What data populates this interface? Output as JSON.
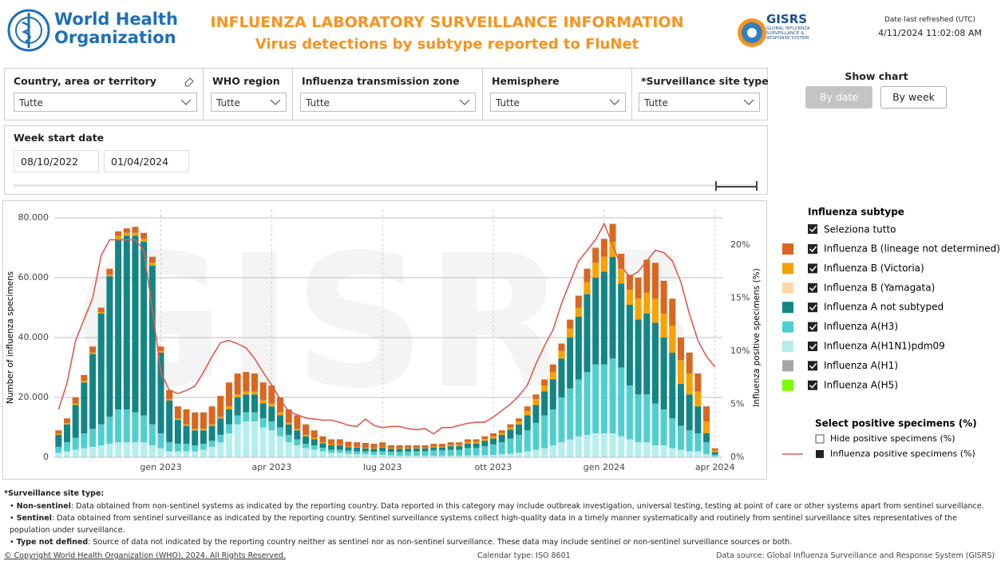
{
  "header": {
    "org_line1": "World Health",
    "org_line2": "Organization",
    "title": "INFLUENZA LABORATORY SURVEILLANCE INFORMATION",
    "subtitle": "Virus detections by subtype reported to FluNet",
    "gisrs": "GISRS",
    "gisrs_sub": "GLOBAL INFLUENZA SURVEILLANCE & RESPONSE SYSTEM",
    "refreshed_label": "Date last refreshed (UTC)",
    "refreshed_value": "4/11/2024 11:02:08 AM"
  },
  "filters": [
    {
      "label": "Country, area or territory",
      "value": "Tutte"
    },
    {
      "label": "WHO region",
      "value": "Tutte"
    },
    {
      "label": "Influenza transmission zone",
      "value": "Tutte"
    },
    {
      "label": "Hemisphere",
      "value": "Tutte"
    },
    {
      "label": "*Surveillance site type",
      "value": "Tutte"
    }
  ],
  "date_filter": {
    "label": "Week start date",
    "from": "08/10/2022",
    "to": "01/04/2024"
  },
  "show_chart": {
    "title": "Show chart",
    "options": [
      "By date",
      "By week"
    ]
  },
  "chart_data": {
    "type": "bar",
    "stacked": true,
    "watermark": "GISRS",
    "y_label": "Number of influenza specimens",
    "y2_label": "Influenza positive specimens (%)",
    "categories": [
      null,
      null,
      null,
      null,
      null,
      null,
      null,
      null,
      null,
      null,
      null,
      null,
      "gen 2023",
      null,
      null,
      null,
      null,
      null,
      null,
      null,
      null,
      null,
      null,
      null,
      null,
      "apr 2023",
      null,
      null,
      null,
      null,
      null,
      null,
      null,
      null,
      null,
      null,
      null,
      null,
      "lug 2023",
      null,
      null,
      null,
      null,
      null,
      null,
      null,
      null,
      null,
      null,
      null,
      null,
      "ott 2023",
      null,
      null,
      null,
      null,
      null,
      null,
      null,
      null,
      null,
      null,
      null,
      null,
      "gen 2024",
      null,
      null,
      null,
      null,
      null,
      null,
      null,
      null,
      null,
      null,
      null,
      null,
      "apr 2024"
    ],
    "ylim": [
      0,
      80000
    ],
    "yticks": [
      0,
      {
        "value": 20000,
        "label": "20.000"
      },
      {
        "value": 40000,
        "label": "40.000"
      },
      {
        "value": 60000,
        "label": "60.000"
      },
      {
        "value": 80000,
        "label": "80.000"
      }
    ],
    "y2lim": [
      0,
      22.56
    ],
    "y2ticks": [
      {
        "value": 0,
        "label": "0%"
      },
      {
        "value": 5,
        "label": "5%"
      },
      {
        "value": 10,
        "label": "10%"
      },
      {
        "value": 15,
        "label": "15%"
      },
      {
        "value": 20,
        "label": "20%"
      }
    ],
    "grid": true,
    "legend_title": "Influenza subtype",
    "select_all": "Seleziona tutto",
    "line_legend_title": "Select positive specimens (%)",
    "hide_label": "Hide positive specimens (%)",
    "series": [
      {
        "name": "Influenza B (lineage not determined)",
        "color": "#d9671f",
        "values": [
          1200,
          1500,
          2000,
          2000,
          2000,
          1500,
          2000,
          1500,
          1500,
          2000,
          2000,
          2000,
          1500,
          3000,
          4000,
          5000,
          5500,
          5500,
          6000,
          7000,
          8000,
          7000,
          6500,
          6000,
          6000,
          6000,
          5000,
          4500,
          4500,
          3500,
          2500,
          2000,
          1700,
          1800,
          1600,
          1600,
          1600,
          1500,
          1600,
          1000,
          1000,
          900,
          800,
          800,
          900,
          900,
          900,
          900,
          900,
          900,
          900,
          1000,
          900,
          1000,
          1000,
          1500,
          1500,
          2000,
          2500,
          2500,
          3000,
          4000,
          4500,
          5000,
          6000,
          6000,
          5000,
          5000,
          7000,
          11000,
          12000,
          11000,
          9000,
          7500,
          7000,
          6000,
          5000,
          700
        ]
      },
      {
        "name": "Influenza B (Victoria)",
        "color": "#f5a300",
        "values": [
          300,
          500,
          500,
          500,
          500,
          500,
          500,
          1000,
          1000,
          1000,
          1000,
          1000,
          500,
          500,
          500,
          500,
          500,
          500,
          500,
          500,
          1000,
          1000,
          1000,
          1000,
          1000,
          1000,
          1000,
          500,
          500,
          500,
          500,
          300,
          300,
          200,
          200,
          200,
          200,
          200,
          200,
          200,
          200,
          200,
          200,
          200,
          300,
          300,
          400,
          400,
          500,
          500,
          600,
          700,
          600,
          800,
          1000,
          1500,
          2000,
          2000,
          2500,
          2500,
          3000,
          3000,
          4000,
          5000,
          5000,
          5000,
          5000,
          5000,
          7000,
          7000,
          8000,
          8000,
          9000,
          8000,
          7000,
          5000,
          4000,
          600
        ]
      },
      {
        "name": "Influenza B (Yamagata)",
        "color": "#fdd9a8",
        "values": [
          0,
          0,
          0,
          0,
          0,
          0,
          0,
          0,
          0,
          0,
          0,
          0,
          0,
          0,
          0,
          0,
          0,
          0,
          0,
          0,
          0,
          0,
          0,
          0,
          0,
          0,
          0,
          0,
          0,
          0,
          0,
          0,
          0,
          0,
          0,
          0,
          0,
          0,
          0,
          0,
          0,
          0,
          0,
          0,
          0,
          0,
          0,
          0,
          0,
          0,
          0,
          0,
          0,
          0,
          0,
          0,
          0,
          0,
          0,
          0,
          0,
          0,
          0,
          0,
          0,
          0,
          0,
          0,
          0,
          0,
          0,
          0,
          0,
          0,
          0,
          0,
          0,
          0
        ]
      },
      {
        "name": "Influenza A not subtyped",
        "color": "#138585",
        "values": [
          4000,
          6000,
          11000,
          17000,
          25000,
          37000,
          47000,
          57000,
          58000,
          59000,
          58000,
          53000,
          27000,
          14000,
          8000,
          6000,
          5000,
          4500,
          5000,
          5500,
          5000,
          6000,
          6000,
          6000,
          5000,
          5000,
          4000,
          3500,
          3000,
          2500,
          2000,
          1500,
          1500,
          1500,
          1200,
          1200,
          1000,
          1000,
          1200,
          1000,
          1000,
          1000,
          1000,
          1000,
          1000,
          1000,
          1200,
          1200,
          1500,
          1500,
          1800,
          2000,
          2500,
          3000,
          3500,
          5000,
          6000,
          8000,
          10000,
          13000,
          17000,
          21000,
          26000,
          29000,
          31000,
          34000,
          28000,
          27000,
          25000,
          27000,
          27000,
          24000,
          22000,
          14000,
          12000,
          9000,
          3000,
          800
        ]
      },
      {
        "name": "Influenza A(H3)",
        "color": "#4ecfcf",
        "values": [
          2000,
          3000,
          4000,
          5000,
          6000,
          7000,
          9000,
          11000,
          11000,
          10000,
          9000,
          7000,
          5000,
          3000,
          2500,
          2500,
          2000,
          2000,
          2000,
          2500,
          3000,
          3000,
          3000,
          3000,
          3000,
          3000,
          3000,
          2500,
          2000,
          1500,
          1500,
          1200,
          1000,
          1000,
          1000,
          1000,
          1000,
          1000,
          1200,
          1200,
          1300,
          1400,
          1500,
          1500,
          1800,
          1800,
          2000,
          2000,
          2500,
          2500,
          3000,
          3500,
          4000,
          5000,
          6000,
          7000,
          9000,
          11000,
          12000,
          15000,
          17000,
          19000,
          21000,
          23000,
          23000,
          25000,
          23000,
          18000,
          16000,
          16000,
          14000,
          12000,
          10000,
          8000,
          7000,
          6000,
          4000,
          600
        ]
      },
      {
        "name": "Influenza A(H1N1)pdm09",
        "color": "#b5eeee",
        "values": [
          1500,
          2000,
          2500,
          3000,
          3500,
          4000,
          4500,
          5000,
          5000,
          5000,
          5000,
          4000,
          3000,
          2000,
          2000,
          2000,
          2000,
          2500,
          3500,
          5000,
          8000,
          11000,
          12000,
          12000,
          10000,
          9000,
          7000,
          5000,
          4000,
          3000,
          2500,
          2000,
          1500,
          1500,
          1200,
          1000,
          1000,
          800,
          800,
          600,
          500,
          500,
          500,
          500,
          500,
          500,
          500,
          500,
          600,
          600,
          700,
          800,
          1000,
          1200,
          1500,
          2000,
          2500,
          3000,
          4000,
          5000,
          6000,
          7000,
          7500,
          8000,
          8000,
          8000,
          7000,
          6000,
          5000,
          5000,
          4000,
          4000,
          3000,
          2500,
          2000,
          2000,
          1000,
          300
        ]
      },
      {
        "name": "Influenza A(H1)",
        "color": "#a6a6a6",
        "values": [
          0,
          0,
          0,
          0,
          0,
          0,
          0,
          0,
          0,
          0,
          0,
          0,
          0,
          0,
          0,
          0,
          0,
          0,
          0,
          0,
          0,
          0,
          0,
          0,
          0,
          0,
          0,
          0,
          0,
          0,
          0,
          0,
          0,
          0,
          0,
          0,
          0,
          0,
          0,
          0,
          0,
          0,
          0,
          0,
          0,
          0,
          0,
          0,
          0,
          0,
          0,
          0,
          0,
          0,
          0,
          0,
          0,
          0,
          0,
          0,
          0,
          0,
          0,
          0,
          0,
          0,
          0,
          0,
          0,
          0,
          0,
          0,
          0,
          0,
          0,
          0,
          0,
          0
        ]
      },
      {
        "name": "Influenza A(H5)",
        "color": "#7dfc00",
        "values": [
          0,
          0,
          0,
          0,
          0,
          0,
          0,
          0,
          0,
          0,
          0,
          0,
          0,
          0,
          0,
          0,
          0,
          0,
          0,
          0,
          0,
          0,
          0,
          0,
          0,
          0,
          0,
          0,
          0,
          0,
          0,
          0,
          0,
          0,
          0,
          0,
          0,
          0,
          0,
          0,
          0,
          0,
          0,
          0,
          0,
          0,
          0,
          0,
          0,
          0,
          0,
          0,
          0,
          0,
          0,
          0,
          0,
          0,
          0,
          0,
          0,
          0,
          0,
          0,
          0,
          0,
          0,
          0,
          0,
          0,
          0,
          0,
          0,
          0,
          0,
          0,
          0,
          0
        ]
      },
      {
        "name": "Influenza positive specimens (%)",
        "type": "line",
        "axis": "y2",
        "color": "#e05a4f",
        "values": [
          4.5,
          7,
          11,
          13,
          15,
          19,
          20.5,
          20.5,
          20.5,
          20.5,
          19.5,
          14,
          8,
          6.3,
          6,
          6.3,
          6.7,
          8,
          9.5,
          10.8,
          11,
          10.7,
          10.3,
          9.3,
          8,
          6.8,
          5.5,
          4.3,
          4,
          3.7,
          3.6,
          3.5,
          3.5,
          3.3,
          3,
          2.9,
          3.6,
          3,
          2.8,
          2.9,
          2.9,
          2.7,
          2.6,
          2.7,
          2.2,
          2.8,
          2.8,
          3,
          3.2,
          3.3,
          3.3,
          3.8,
          4.4,
          5,
          5.8,
          6.8,
          8.8,
          10.5,
          12,
          14.5,
          16.5,
          18.5,
          19.5,
          20.5,
          22,
          20,
          18,
          17,
          17.5,
          18.5,
          19.5,
          19.3,
          18.5,
          16.5,
          13.5,
          11,
          9.5,
          8.5
        ]
      }
    ]
  },
  "footer": {
    "heading": "*Surveillance site type:",
    "notes": [
      {
        "term": "Non-sentinel",
        "text": ": Data obtained from non-sentinel systems as indicated by the reporting country. Data reported in this category may include outbreak investigation, universal testing, testing at point of care or other systems apart from sentinel surveillance."
      },
      {
        "term": "Sentinel",
        "text": ": Data obtained from sentinel surveillance as indicated by the reporting country. Sentinel surveillance systems collect high-quality data in a timely manner systematically and routinely from sentinel surveillance sites representatives of the population under surveillance."
      },
      {
        "term": "Type not defined",
        "text": ": Source of data not indicated by the reporting country neither as sentinel nor as non-sentinel surveillance. These data may include sentinel or non-sentinel surveillance sources or both."
      }
    ],
    "copyright": "© Copyright World Health Organization (WHO), 2024. All Rights Reserved.",
    "calendar": "Calendar type: ISO 8601",
    "source": "Data source: Global Influenza Surveillance and Response System (GISRS)"
  }
}
